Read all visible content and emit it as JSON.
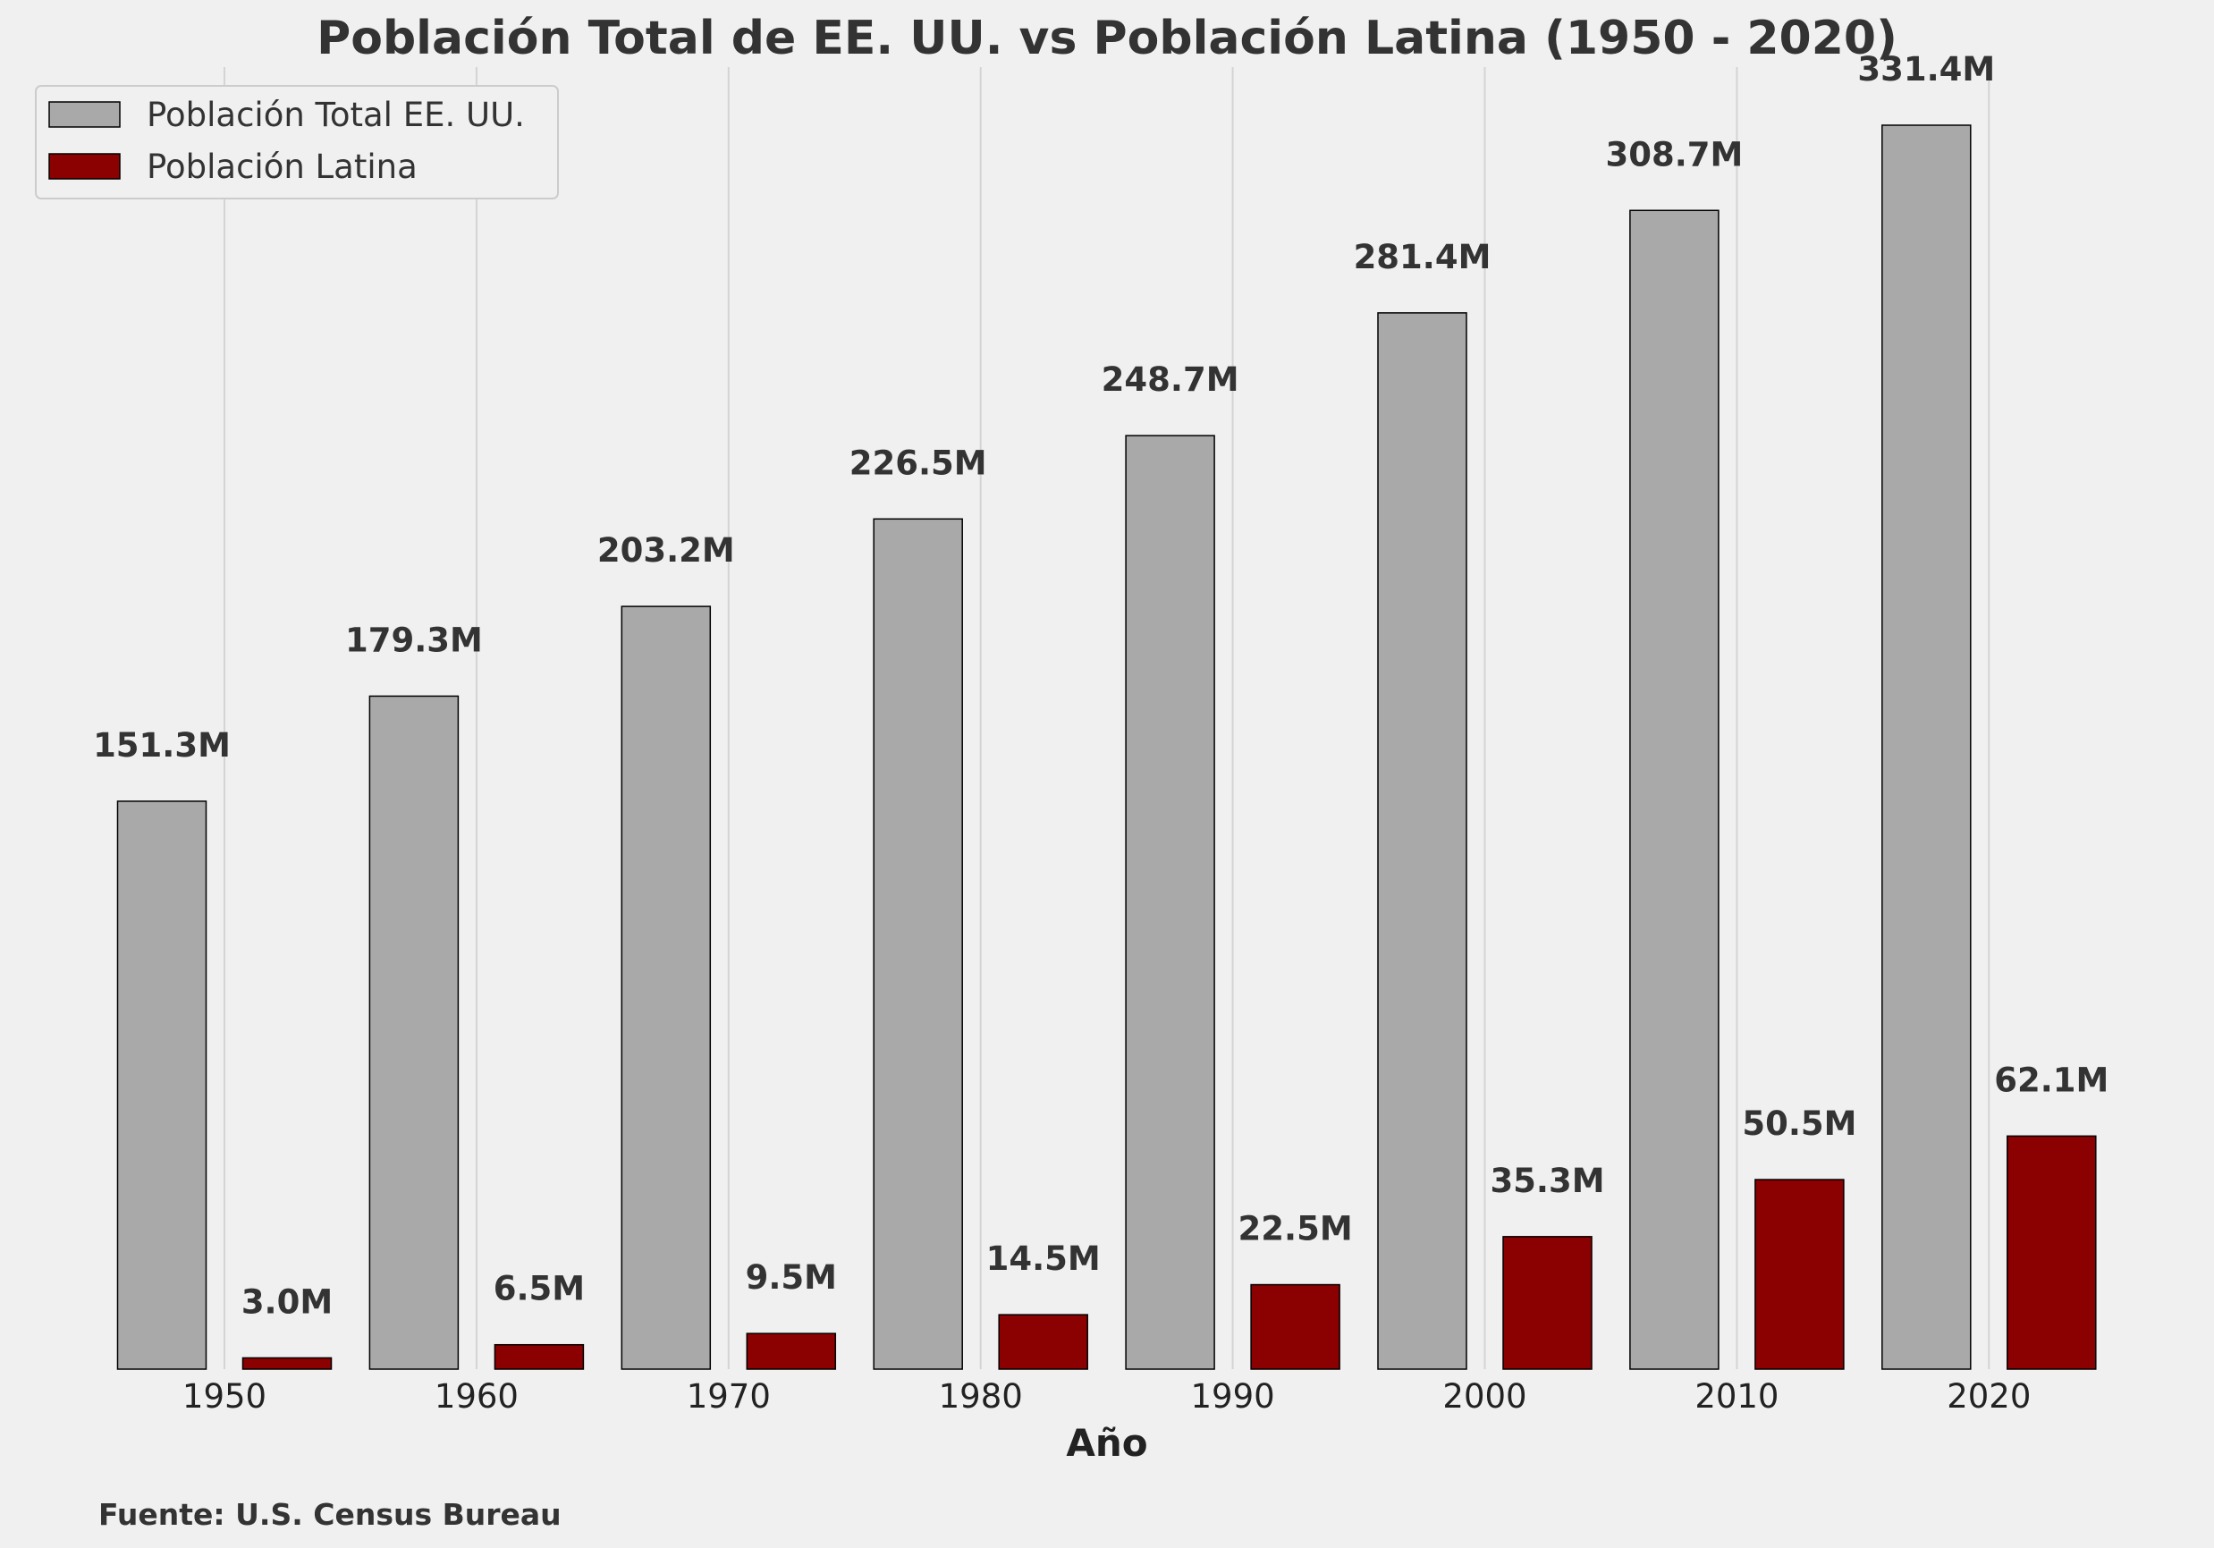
{
  "chart_data": {
    "type": "bar",
    "title": "Población Total de EE. UU. vs Población Latina (1950 - 2020)",
    "xlabel": "Año",
    "ylabel": "",
    "categories": [
      "1950",
      "1960",
      "1970",
      "1980",
      "1990",
      "2000",
      "2010",
      "2020"
    ],
    "series": [
      {
        "name": "Población Total EE. UU.",
        "color": "#a9a9a9",
        "values": [
          151.3,
          179.3,
          203.2,
          226.5,
          248.7,
          281.4,
          308.7,
          331.4
        ],
        "labels": [
          "151.3M",
          "179.3M",
          "203.2M",
          "226.5M",
          "248.7M",
          "281.4M",
          "308.7M",
          "331.4M"
        ]
      },
      {
        "name": "Población Latina",
        "color": "#8b0000",
        "values": [
          3.0,
          6.5,
          9.5,
          14.5,
          22.5,
          35.3,
          50.5,
          62.1
        ],
        "labels": [
          "3.0M",
          "6.5M",
          "9.5M",
          "14.5M",
          "22.5M",
          "35.3M",
          "50.5M",
          "62.1M"
        ]
      }
    ],
    "ylim": [
      0,
      350
    ],
    "grid": "vertical",
    "legend_position": "top-left",
    "source": "Fuente: U.S. Census Bureau"
  }
}
